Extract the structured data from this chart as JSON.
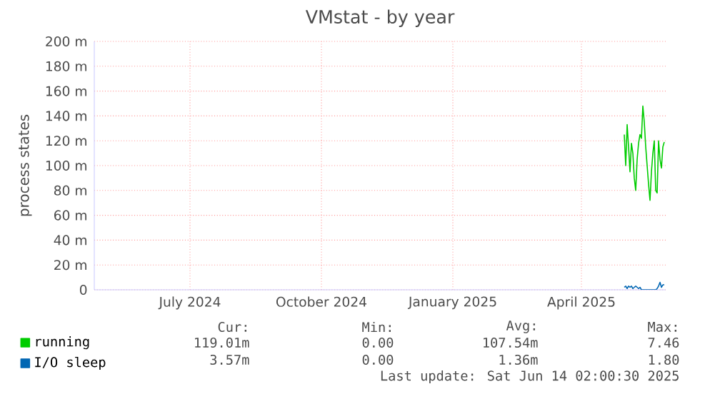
{
  "chart_data": {
    "type": "line",
    "title": "VMstat - by year",
    "ylabel": "process states",
    "x": [
      "2025-05-16",
      "2025-05-17",
      "2025-05-18",
      "2025-05-19",
      "2025-05-20",
      "2025-05-21",
      "2025-05-22",
      "2025-05-23",
      "2025-05-24",
      "2025-05-25",
      "2025-05-26",
      "2025-05-27",
      "2025-05-28",
      "2025-05-29",
      "2025-05-30",
      "2025-05-31",
      "2025-06-01",
      "2025-06-02",
      "2025-06-03",
      "2025-06-04",
      "2025-06-05",
      "2025-06-06",
      "2025-06-07",
      "2025-06-08",
      "2025-06-09",
      "2025-06-10",
      "2025-06-11",
      "2025-06-12",
      "2025-06-13"
    ],
    "series": [
      {
        "name": "running",
        "color": "#00cc00",
        "values": [
          125,
          100,
          133,
          115,
          95,
          118,
          110,
          90,
          80,
          105,
          118,
          125,
          122,
          148,
          135,
          115,
          100,
          85,
          72,
          95,
          110,
          120,
          80,
          78,
          120,
          105,
          98,
          115,
          119
        ]
      },
      {
        "name": "I/O sleep",
        "color": "#0066b3",
        "values": [
          2,
          3,
          1,
          3,
          2,
          3,
          1,
          2,
          3,
          2,
          1,
          2,
          0,
          0,
          0,
          0,
          0,
          0,
          0,
          0,
          0,
          0,
          0,
          1,
          3,
          6,
          2,
          4,
          4
        ]
      }
    ],
    "xlim": [
      "2024-05-10",
      "2025-06-14"
    ],
    "xticks": [
      {
        "value": "2024-07-16",
        "label": "July 2024"
      },
      {
        "value": "2024-10-16",
        "label": "October 2024"
      },
      {
        "value": "2025-01-16",
        "label": "January 2025"
      },
      {
        "value": "2025-04-16",
        "label": "April 2025"
      }
    ],
    "ylim": [
      0,
      200
    ],
    "yticks": [
      0,
      {
        "value": 20,
        "label": "20 m"
      },
      {
        "value": 40,
        "label": "40 m"
      },
      {
        "value": 60,
        "label": "60 m"
      },
      {
        "value": 80,
        "label": "80 m"
      },
      {
        "value": 100,
        "label": "100 m"
      },
      {
        "value": 120,
        "label": "120 m"
      },
      {
        "value": 140,
        "label": "140 m"
      },
      {
        "value": 160,
        "label": "160 m"
      },
      {
        "value": 180,
        "label": "180 m"
      },
      {
        "value": 200,
        "label": "200 m"
      }
    ],
    "grid": true,
    "legend": "bottom",
    "marker": "none",
    "line_style": "solid",
    "annotations": [
      "Cur:",
      "Min:",
      "Avg:",
      "Max:",
      "119.01m",
      "0.00",
      "107.54m",
      "7.46",
      "3.57m",
      "0.00",
      "1.36m",
      "1.80",
      "Last update: Sat Jun 14 02:00:30 2025"
    ]
  }
}
